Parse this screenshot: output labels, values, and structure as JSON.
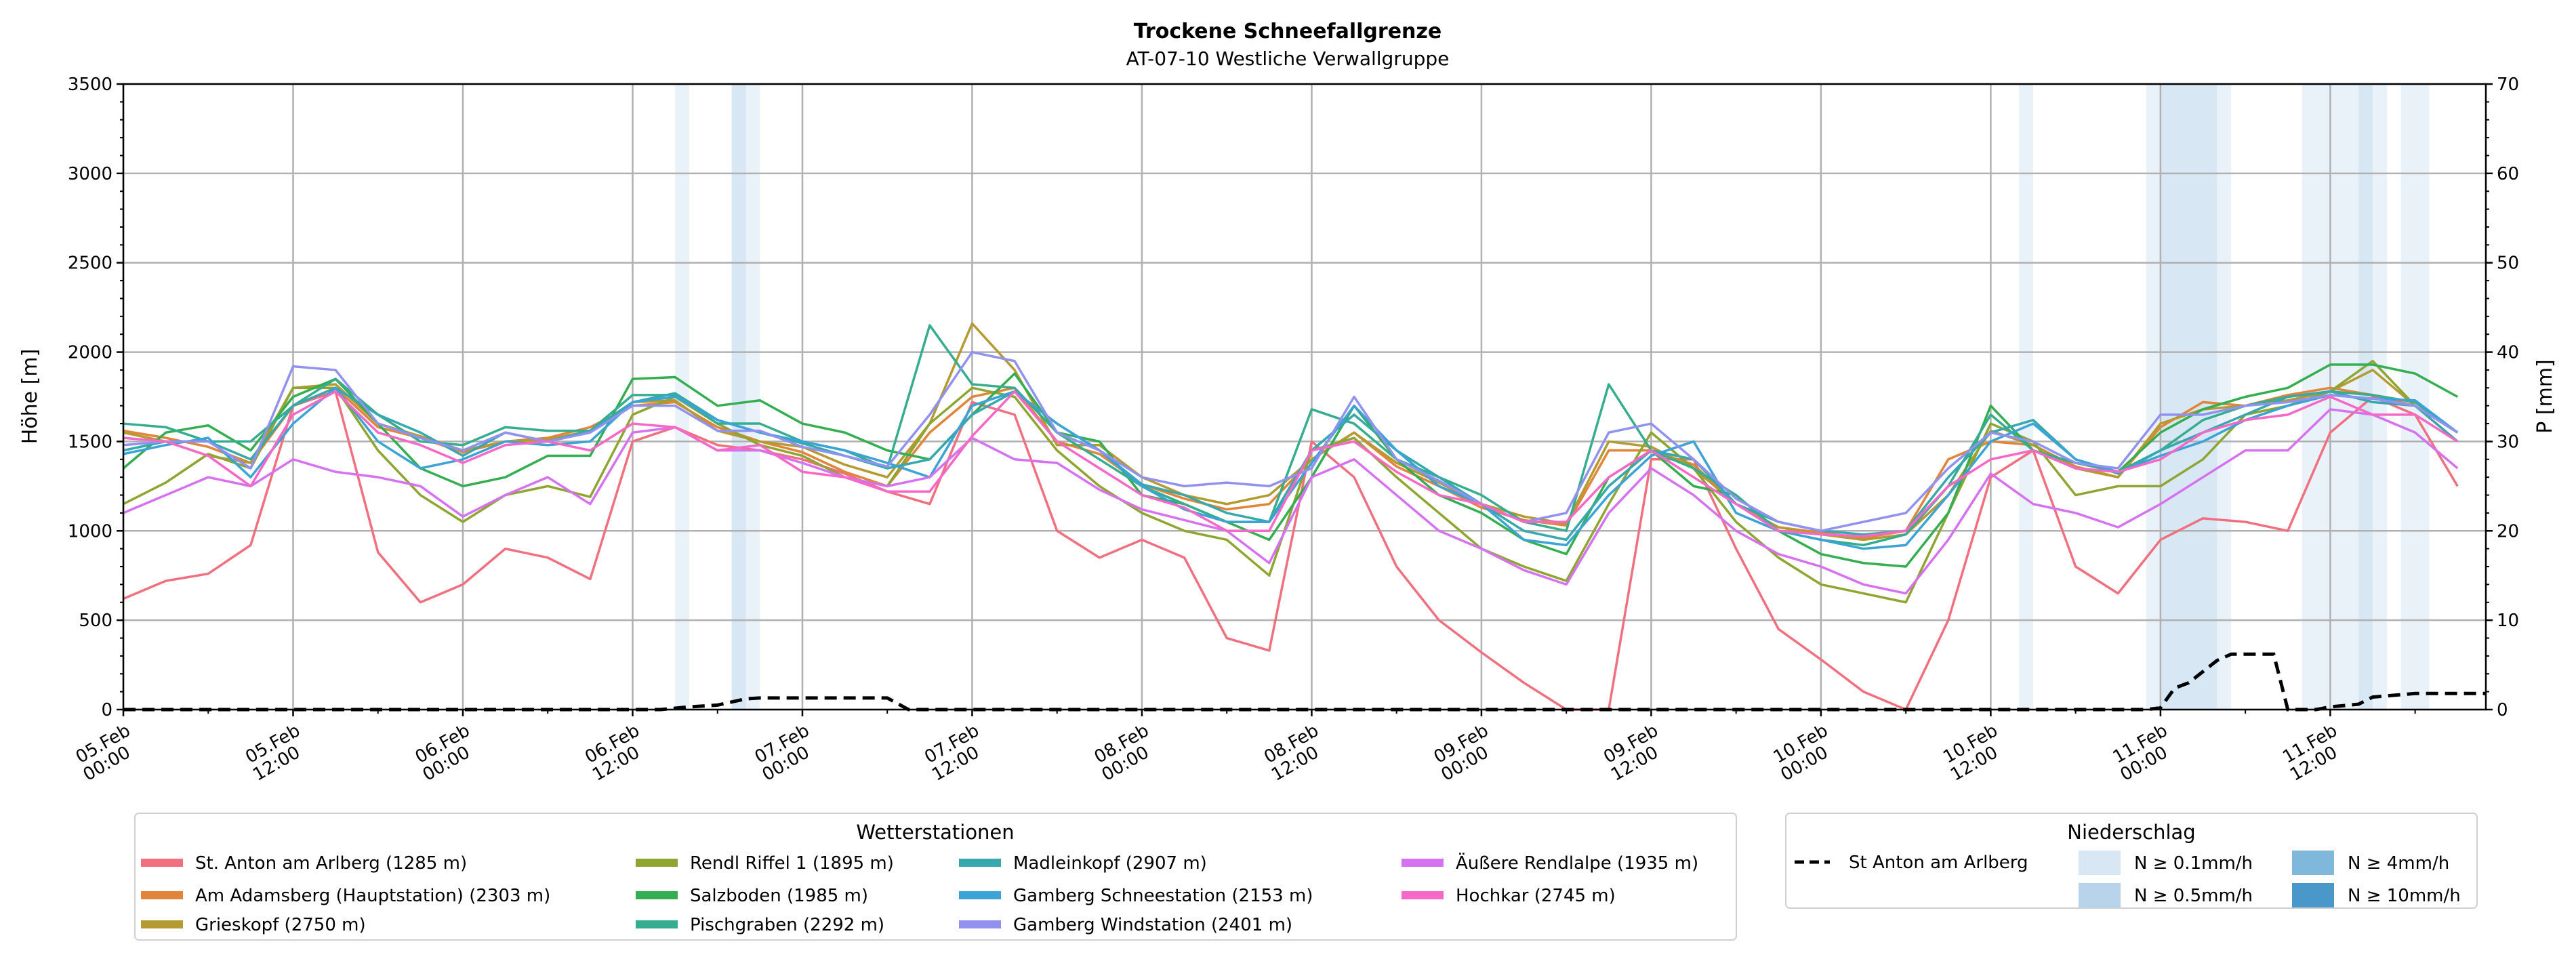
{
  "chart_data": {
    "type": "line",
    "title": "Trockene Schneefallgrenze",
    "subtitle": "AT-07-10 Westliche Verwallgruppe",
    "ylabel": "Höhe [m]",
    "ylabel_right": "P [mm]",
    "ylim": [
      0,
      3500
    ],
    "ylim_right": [
      0,
      70
    ],
    "yticks": [
      "0",
      "500",
      "1000",
      "1500",
      "2000",
      "2500",
      "3000",
      "3500"
    ],
    "yticks_right": [
      "0",
      "10",
      "20",
      "30",
      "40",
      "50",
      "60",
      "70"
    ],
    "x_unit": "hours since 05.Feb 00:00",
    "xlim": [
      0,
      167
    ],
    "xticks": [
      {
        "h": 0,
        "d": "05.Feb",
        "t": "00:00"
      },
      {
        "h": 12,
        "d": "05.Feb",
        "t": "12:00"
      },
      {
        "h": 24,
        "d": "06.Feb",
        "t": "00:00"
      },
      {
        "h": 36,
        "d": "06.Feb",
        "t": "12:00"
      },
      {
        "h": 48,
        "d": "07.Feb",
        "t": "00:00"
      },
      {
        "h": 60,
        "d": "07.Feb",
        "t": "12:00"
      },
      {
        "h": 72,
        "d": "08.Feb",
        "t": "00:00"
      },
      {
        "h": 84,
        "d": "08.Feb",
        "t": "12:00"
      },
      {
        "h": 96,
        "d": "09.Feb",
        "t": "00:00"
      },
      {
        "h": 108,
        "d": "09.Feb",
        "t": "12:00"
      },
      {
        "h": 120,
        "d": "10.Feb",
        "t": "00:00"
      },
      {
        "h": 132,
        "d": "10.Feb",
        "t": "12:00"
      },
      {
        "h": 144,
        "d": "11.Feb",
        "t": "00:00"
      },
      {
        "h": 156,
        "d": "11.Feb",
        "t": "12:00"
      }
    ],
    "grid": true,
    "x_step_hours": 3,
    "legend_title": "Wetterstationen",
    "series": [
      {
        "name": "St. Anton am Arlberg (1285 m)",
        "color": "#f0707f",
        "values": [
          620,
          720,
          760,
          920,
          1700,
          1780,
          880,
          600,
          700,
          900,
          850,
          730,
          1500,
          1580,
          1480,
          1450,
          1400,
          1320,
          1220,
          1150,
          1720,
          1650,
          1000,
          850,
          950,
          850,
          400,
          330,
          1500,
          1300,
          800,
          500,
          320,
          150,
          0,
          0,
          1400,
          1400,
          900,
          450,
          280,
          100,
          0,
          500,
          1300,
          1450,
          800,
          650,
          950,
          1070,
          1050,
          1000,
          1550,
          1750,
          1650,
          1250
        ]
      },
      {
        "name": "Am Adamsberg (Hauptstation) (2303 m)",
        "color": "#e0853a",
        "values": [
          1560,
          1520,
          1470,
          1380,
          1700,
          1800,
          1580,
          1520,
          1440,
          1500,
          1520,
          1580,
          1700,
          1720,
          1580,
          1500,
          1440,
          1330,
          1250,
          1550,
          1750,
          1800,
          1500,
          1430,
          1260,
          1180,
          1120,
          1150,
          1400,
          1550,
          1360,
          1250,
          1130,
          1060,
          1030,
          1450,
          1450,
          1370,
          1150,
          1020,
          990,
          960,
          1000,
          1400,
          1500,
          1480,
          1360,
          1300,
          1580,
          1720,
          1700,
          1760,
          1800,
          1760,
          1700,
          1550
        ]
      },
      {
        "name": "Grieskopf (2750 m)",
        "color": "#b59a32",
        "values": [
          1550,
          1500,
          1420,
          1380,
          1800,
          1820,
          1600,
          1530,
          1450,
          1500,
          1510,
          1560,
          1720,
          1730,
          1560,
          1500,
          1470,
          1370,
          1300,
          1600,
          2160,
          1900,
          1480,
          1480,
          1300,
          1200,
          1150,
          1200,
          1400,
          1550,
          1380,
          1270,
          1150,
          1080,
          1040,
          1500,
          1470,
          1350,
          1150,
          1020,
          980,
          950,
          980,
          1200,
          1560,
          1480,
          1350,
          1300,
          1600,
          1680,
          1700,
          1730,
          1780,
          1900,
          1700,
          1550
        ]
      },
      {
        "name": "Rendl Riffel 1 (1895 m)",
        "color": "#8fa532",
        "values": [
          1150,
          1270,
          1430,
          1350,
          1800,
          1800,
          1450,
          1200,
          1050,
          1200,
          1250,
          1190,
          1650,
          1750,
          1600,
          1480,
          1420,
          1300,
          1250,
          1600,
          1800,
          1750,
          1450,
          1250,
          1100,
          1000,
          950,
          750,
          1450,
          1520,
          1300,
          1100,
          900,
          800,
          720,
          1150,
          1550,
          1350,
          1050,
          850,
          700,
          650,
          600,
          1100,
          1600,
          1500,
          1200,
          1250,
          1250,
          1400,
          1650,
          1700,
          1780,
          1950,
          1700,
          1500
        ]
      },
      {
        "name": "Salzboden (1985 m)",
        "color": "#35ae52",
        "values": [
          1350,
          1550,
          1590,
          1450,
          1750,
          1850,
          1600,
          1350,
          1250,
          1300,
          1420,
          1420,
          1850,
          1860,
          1700,
          1730,
          1600,
          1550,
          1450,
          1400,
          1650,
          1880,
          1550,
          1500,
          1200,
          1150,
          1050,
          950,
          1300,
          1700,
          1400,
          1200,
          1100,
          950,
          870,
          1300,
          1450,
          1250,
          1200,
          1000,
          870,
          820,
          800,
          1100,
          1700,
          1450,
          1350,
          1330,
          1550,
          1680,
          1750,
          1800,
          1930,
          1930,
          1880,
          1750
        ]
      },
      {
        "name": "Pischgraben (2292 m)",
        "color": "#36ad8e",
        "values": [
          1600,
          1580,
          1500,
          1500,
          1700,
          1850,
          1650,
          1500,
          1480,
          1580,
          1560,
          1560,
          1760,
          1760,
          1600,
          1600,
          1500,
          1450,
          1350,
          2150,
          1820,
          1800,
          1550,
          1400,
          1250,
          1150,
          1050,
          1050,
          1680,
          1600,
          1400,
          1300,
          1200,
          1050,
          1000,
          1820,
          1450,
          1350,
          1200,
          1000,
          950,
          920,
          980,
          1250,
          1650,
          1450,
          1380,
          1330,
          1450,
          1620,
          1700,
          1750,
          1780,
          1760,
          1720,
          1550
        ]
      },
      {
        "name": "Madleinkopf (2907 m)",
        "color": "#36a8ae",
        "values": [
          1450,
          1500,
          1500,
          1400,
          1700,
          1800,
          1650,
          1550,
          1420,
          1550,
          1500,
          1560,
          1720,
          1770,
          1620,
          1550,
          1490,
          1420,
          1350,
          1400,
          1650,
          1780,
          1600,
          1450,
          1260,
          1200,
          1100,
          1050,
          1450,
          1650,
          1450,
          1300,
          1150,
          1000,
          950,
          1250,
          1450,
          1400,
          1150,
          1050,
          1000,
          980,
          1000,
          1300,
          1550,
          1620,
          1400,
          1320,
          1450,
          1550,
          1650,
          1750,
          1780,
          1720,
          1700,
          1500
        ]
      },
      {
        "name": "Gamberg Schneestation (2153 m)",
        "color": "#3ba3d6",
        "values": [
          1430,
          1480,
          1520,
          1300,
          1600,
          1800,
          1500,
          1350,
          1400,
          1500,
          1480,
          1500,
          1720,
          1750,
          1620,
          1550,
          1500,
          1450,
          1380,
          1300,
          1700,
          1780,
          1600,
          1450,
          1250,
          1120,
          1050,
          1050,
          1380,
          1700,
          1450,
          1250,
          1150,
          950,
          920,
          1200,
          1420,
          1500,
          1100,
          1000,
          950,
          900,
          920,
          1200,
          1500,
          1600,
          1400,
          1330,
          1420,
          1500,
          1620,
          1700,
          1760,
          1740,
          1730,
          1550
        ]
      },
      {
        "name": "Gamberg Windstation (2401 m)",
        "color": "#9191f0",
        "values": [
          1480,
          1500,
          1500,
          1350,
          1920,
          1900,
          1600,
          1520,
          1450,
          1550,
          1500,
          1550,
          1700,
          1700,
          1560,
          1560,
          1470,
          1420,
          1360,
          1650,
          2000,
          1950,
          1550,
          1450,
          1300,
          1250,
          1270,
          1250,
          1350,
          1750,
          1400,
          1280,
          1150,
          1050,
          1100,
          1550,
          1600,
          1400,
          1180,
          1050,
          1000,
          1050,
          1100,
          1350,
          1550,
          1500,
          1380,
          1350,
          1650,
          1650,
          1700,
          1720,
          1760,
          1740,
          1700,
          1550
        ]
      },
      {
        "name": "Äußere Rendlalpe (1935 m)",
        "color": "#d672f0",
        "values": [
          1100,
          1200,
          1300,
          1250,
          1400,
          1330,
          1300,
          1250,
          1080,
          1200,
          1300,
          1150,
          1550,
          1580,
          1450,
          1450,
          1380,
          1300,
          1250,
          1300,
          1520,
          1400,
          1380,
          1230,
          1120,
          1060,
          1000,
          820,
          1300,
          1400,
          1200,
          1000,
          900,
          780,
          700,
          1100,
          1350,
          1200,
          1000,
          870,
          800,
          700,
          650,
          950,
          1320,
          1150,
          1100,
          1020,
          1150,
          1300,
          1450,
          1450,
          1680,
          1650,
          1550,
          1350
        ]
      },
      {
        "name": "Hochkar (2745 m)",
        "color": "#f668c8",
        "values": [
          1520,
          1500,
          1420,
          1250,
          1650,
          1780,
          1550,
          1480,
          1380,
          1480,
          1500,
          1450,
          1600,
          1580,
          1450,
          1480,
          1330,
          1300,
          1220,
          1220,
          1530,
          1780,
          1500,
          1350,
          1200,
          1130,
          1000,
          1000,
          1450,
          1500,
          1330,
          1200,
          1150,
          1050,
          1050,
          1300,
          1450,
          1300,
          1150,
          1000,
          980,
          970,
          1000,
          1250,
          1400,
          1450,
          1350,
          1330,
          1400,
          1550,
          1620,
          1650,
          1750,
          1650,
          1650,
          1500
        ]
      }
    ],
    "precipitation": {
      "legend_title": "Niederschlag",
      "name": "St Anton am Arlberg",
      "color": "#000000",
      "points": [
        [
          0,
          0
        ],
        [
          38,
          0
        ],
        [
          40,
          0.3
        ],
        [
          42,
          0.5
        ],
        [
          44,
          1.2
        ],
        [
          45,
          1.3
        ],
        [
          54,
          1.3
        ],
        [
          55.5,
          0
        ],
        [
          143,
          0
        ],
        [
          144,
          0.2
        ],
        [
          145,
          2.4
        ],
        [
          146,
          3
        ],
        [
          148,
          5.5
        ],
        [
          149,
          6.2
        ],
        [
          152,
          6.2
        ],
        [
          153,
          0
        ],
        [
          155,
          0
        ],
        [
          156,
          0.3
        ],
        [
          158,
          0.6
        ],
        [
          159,
          1.4
        ],
        [
          162,
          1.8
        ],
        [
          167,
          1.8
        ]
      ],
      "intensity_levels": [
        {
          "key": "0.1",
          "label": "N ≥ 0.1mm/h",
          "color": "#d9e7f4"
        },
        {
          "key": "0.5",
          "label": "N ≥ 0.5mm/h",
          "color": "#b7d4ea"
        },
        {
          "key": "4",
          "label": "N ≥ 4mm/h",
          "color": "#7fb8da"
        },
        {
          "key": "10",
          "label": "N ≥ 10mm/h",
          "color": "#4a98c9"
        }
      ],
      "bands": [
        [
          39,
          40,
          "0.1"
        ],
        [
          43,
          44,
          "0.5"
        ],
        [
          44,
          45,
          "0.1"
        ],
        [
          134,
          135,
          "0.1"
        ],
        [
          143,
          144,
          "0.1"
        ],
        [
          144,
          148,
          "0.5"
        ],
        [
          148,
          149,
          "0.1"
        ],
        [
          154,
          158,
          "0.1"
        ],
        [
          158,
          159,
          "0.5"
        ],
        [
          159,
          160,
          "0.1"
        ],
        [
          161,
          163,
          "0.1"
        ]
      ]
    }
  }
}
